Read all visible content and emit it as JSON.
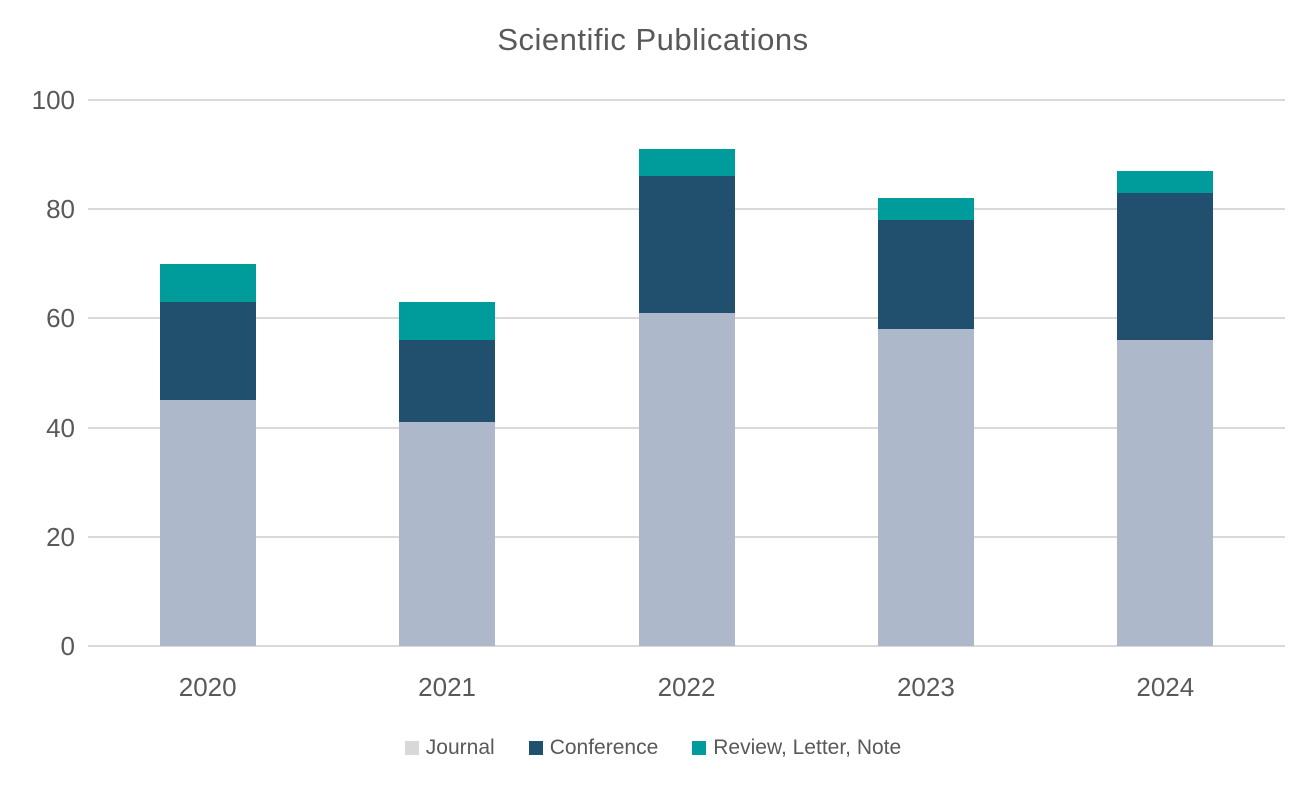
{
  "title": "Scientific Publications",
  "chart_data": {
    "type": "bar",
    "stacked": true,
    "title": "Scientific Publications",
    "categories": [
      "2020",
      "2021",
      "2022",
      "2023",
      "2024"
    ],
    "series": [
      {
        "name": "Journal",
        "values": [
          45,
          41,
          61,
          58,
          56
        ],
        "color": "#ADB9CA"
      },
      {
        "name": "Conference",
        "values": [
          18,
          15,
          25,
          20,
          27
        ],
        "color": "#21506F"
      },
      {
        "name": "Review, Letter, Note",
        "values": [
          7,
          7,
          5,
          4,
          4
        ],
        "color": "#009B9B"
      }
    ],
    "stack_totals": [
      70,
      63,
      91,
      82,
      87
    ],
    "y_ticks": [
      0,
      20,
      40,
      60,
      80,
      100
    ],
    "ylim": [
      0,
      100
    ],
    "grid": true,
    "legend_position": "bottom",
    "xlabel": "",
    "ylabel": ""
  },
  "legend": {
    "items": [
      {
        "label": "Journal",
        "swatch": "#D8D8D8"
      },
      {
        "label": "Conference",
        "swatch": "#21506F"
      },
      {
        "label": "Review, Letter, Note",
        "swatch": "#009B9B"
      }
    ]
  },
  "colors": {
    "background": "#FFFFFF",
    "gridline": "#D9D9D9",
    "text": "#595959",
    "journal_bar": "#ADB9CA",
    "conference_bar": "#21506F",
    "review_bar": "#009B9B"
  }
}
